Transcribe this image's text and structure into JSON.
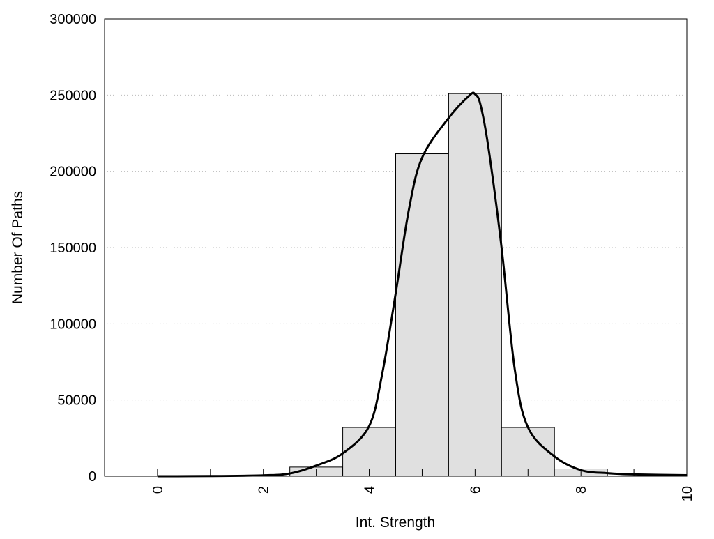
{
  "chart_data": {
    "type": "bar",
    "title": "",
    "xlabel": "Int. Strength",
    "ylabel": "Number Of Paths",
    "xlim": [
      -1,
      10
    ],
    "ylim": [
      0,
      300000
    ],
    "grid": "horizontal dotted",
    "x_ticks": [
      0,
      2,
      4,
      6,
      8,
      10
    ],
    "x_tick_labels": [
      "0",
      "2",
      "4",
      "6",
      "8",
      "10"
    ],
    "y_ticks": [
      0,
      50000,
      100000,
      150000,
      200000,
      250000,
      300000
    ],
    "y_tick_labels": [
      "0",
      "50000",
      "100000",
      "150000",
      "200000",
      "250000",
      "300000"
    ],
    "bars": {
      "x": [
        0,
        1,
        2,
        3,
        4,
        5,
        6,
        7,
        8,
        9,
        10
      ],
      "values": [
        0,
        0,
        0,
        6000,
        32000,
        211500,
        251000,
        32000,
        4800,
        0,
        0
      ],
      "color": "#e0e0e0"
    },
    "curve": {
      "x": [
        0,
        1,
        2,
        2.5,
        3,
        3.5,
        4,
        4.25,
        4.5,
        4.75,
        5,
        5.5,
        5.9,
        6,
        6.1,
        6.25,
        6.5,
        6.75,
        7,
        7.5,
        8,
        8.5,
        9,
        10
      ],
      "y": [
        0,
        100,
        600,
        1800,
        7000,
        15000,
        33000,
        68000,
        120000,
        175000,
        209000,
        235000,
        250000,
        250500,
        244000,
        216000,
        150000,
        70000,
        32000,
        13000,
        4000,
        2000,
        1200,
        700
      ],
      "color": "#000000"
    }
  }
}
